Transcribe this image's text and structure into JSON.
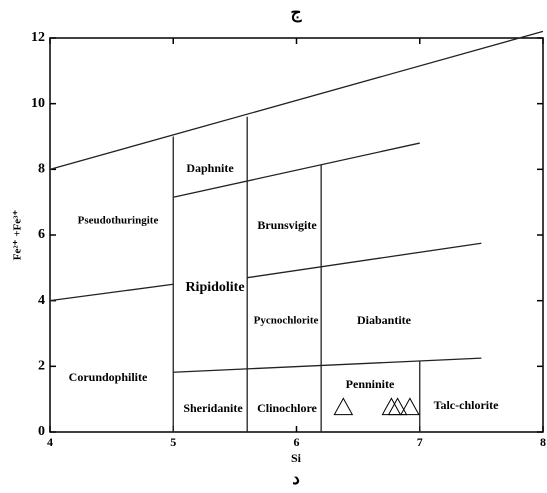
{
  "chart_data": {
    "type": "scatter",
    "title": "ج",
    "caption": "د",
    "x_label": "Si",
    "y_label": "Fe²⁺ +Fe³⁺",
    "xlim": [
      4,
      8
    ],
    "ylim": [
      0,
      12
    ],
    "xticks": [
      4,
      5,
      6,
      7,
      8
    ],
    "yticks": [
      0,
      2,
      4,
      6,
      8,
      10,
      12
    ],
    "marker": "triangle",
    "color": "#000000",
    "x": [
      6.38,
      6.77,
      6.82,
      6.92
    ],
    "values": [
      0.75,
      0.75,
      0.75,
      0.75
    ],
    "boundaries": [
      [
        4,
        8,
        8,
        12.2
      ],
      [
        5,
        0,
        5,
        9
      ],
      [
        5.6,
        0,
        5.6,
        9.6
      ],
      [
        6.2,
        0,
        6.2,
        8.15
      ],
      [
        7,
        0,
        7,
        2.15
      ],
      [
        5,
        7.15,
        7,
        8.8
      ],
      [
        4,
        4,
        5,
        4.5
      ],
      [
        5.6,
        4.7,
        7.5,
        5.75
      ],
      [
        5,
        1.82,
        7.5,
        2.25
      ]
    ],
    "fields": [
      "Pseudothuringite",
      "Daphnite",
      "Brunsvigite",
      "Ripidolite",
      "Pycnochlorite",
      "Diabantite",
      "Corundophilite",
      "Penninite",
      "Sheridanite",
      "Clinochlore",
      "Talc-chlorite"
    ]
  }
}
